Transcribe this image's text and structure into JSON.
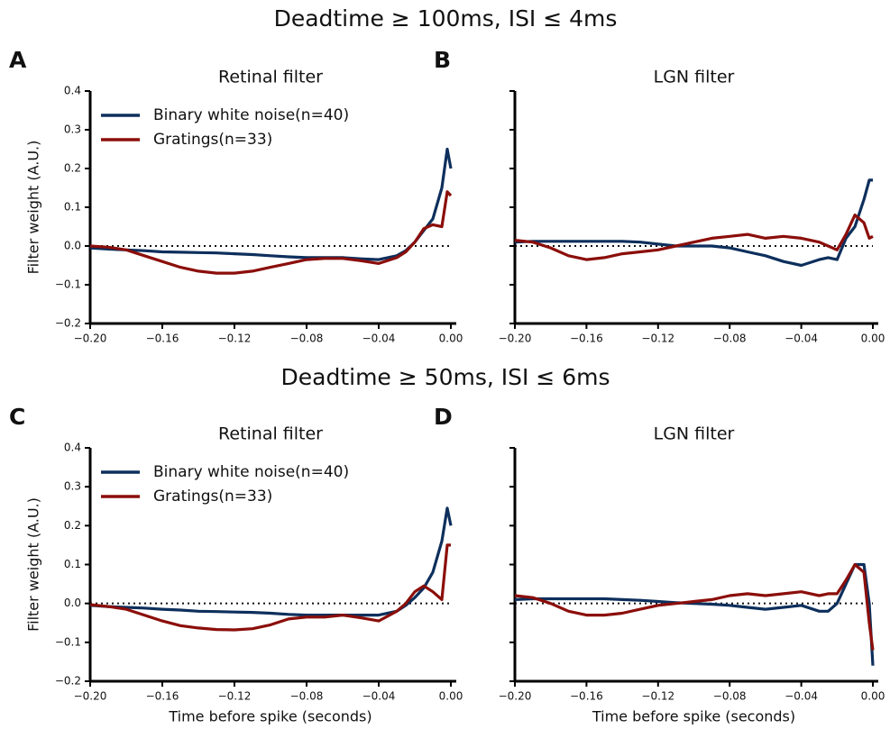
{
  "headings": [
    "Deadtime ≥ 100ms, ISI ≤ 4ms",
    "Deadtime ≥ 50ms, ISI ≤ 6ms"
  ],
  "chart_data": [
    {
      "type": "line",
      "label": "A",
      "title": "Retinal filter",
      "ylabel": "Filter weight (A.U.)",
      "legend": "upper left",
      "x": [
        -0.2,
        -0.19,
        -0.18,
        -0.17,
        -0.16,
        -0.15,
        -0.14,
        -0.13,
        -0.12,
        -0.11,
        -0.1,
        -0.09,
        -0.08,
        -0.07,
        -0.06,
        -0.05,
        -0.04,
        -0.03,
        -0.025,
        -0.02,
        -0.015,
        -0.01,
        -0.005,
        -0.002,
        0.0
      ],
      "series": [
        {
          "name": "Binary white noise(n=40)",
          "color": "#0d2f5c",
          "values": [
            -0.005,
            -0.008,
            -0.01,
            -0.012,
            -0.015,
            -0.016,
            -0.017,
            -0.018,
            -0.02,
            -0.022,
            -0.025,
            -0.028,
            -0.03,
            -0.03,
            -0.03,
            -0.033,
            -0.035,
            -0.025,
            -0.012,
            0.01,
            0.04,
            0.07,
            0.15,
            0.25,
            0.2
          ]
        },
        {
          "name": "Gratings(n=33)",
          "color": "#8b0e0a",
          "values": [
            0.0,
            -0.003,
            -0.01,
            -0.025,
            -0.04,
            -0.055,
            -0.065,
            -0.07,
            -0.07,
            -0.065,
            -0.055,
            -0.045,
            -0.035,
            -0.032,
            -0.032,
            -0.038,
            -0.045,
            -0.03,
            -0.015,
            0.01,
            0.045,
            0.055,
            0.05,
            0.14,
            0.13
          ]
        }
      ],
      "xlim": [
        -0.2,
        0.0
      ],
      "ylim": [
        -0.2,
        0.4
      ],
      "xticks": [
        {
          "value": -0.2,
          "label": "−0.20"
        },
        {
          "value": -0.16,
          "label": "−0.16"
        },
        {
          "value": -0.12,
          "label": "−0.12"
        },
        {
          "value": -0.08,
          "label": "−0.08"
        },
        {
          "value": -0.04,
          "label": "−0.04"
        },
        {
          "value": 0,
          "label": "0.00"
        }
      ],
      "yticks": [
        {
          "value": -0.2,
          "label": "−0.2"
        },
        {
          "value": -0.1,
          "label": "−0.1"
        },
        {
          "value": 0,
          "label": "0.0"
        },
        0.1,
        0.2,
        0.3,
        0.4
      ],
      "show_ytick_labels": true,
      "zero_line": true
    },
    {
      "type": "line",
      "label": "B",
      "title": "LGN filter",
      "x": [
        -0.2,
        -0.19,
        -0.18,
        -0.17,
        -0.16,
        -0.15,
        -0.14,
        -0.13,
        -0.12,
        -0.11,
        -0.1,
        -0.09,
        -0.08,
        -0.07,
        -0.06,
        -0.05,
        -0.04,
        -0.03,
        -0.025,
        -0.02,
        -0.015,
        -0.01,
        -0.005,
        -0.002,
        0.0
      ],
      "series": [
        {
          "color": "#0d2f5c",
          "values": [
            0.01,
            0.012,
            0.012,
            0.012,
            0.012,
            0.012,
            0.012,
            0.01,
            0.005,
            0.0,
            0.0,
            0.0,
            -0.005,
            -0.015,
            -0.025,
            -0.04,
            -0.05,
            -0.035,
            -0.03,
            -0.035,
            0.02,
            0.05,
            0.12,
            0.17,
            0.17
          ]
        },
        {
          "color": "#8b0e0a",
          "values": [
            0.015,
            0.01,
            -0.005,
            -0.025,
            -0.035,
            -0.03,
            -0.02,
            -0.015,
            -0.01,
            0.0,
            0.01,
            0.02,
            0.025,
            0.03,
            0.02,
            0.025,
            0.02,
            0.01,
            0.0,
            -0.01,
            0.03,
            0.08,
            0.06,
            0.02,
            0.025
          ]
        }
      ],
      "xlim": [
        -0.2,
        0.0
      ],
      "ylim": [
        -0.2,
        0.4
      ],
      "xticks": [
        {
          "value": -0.2,
          "label": "−0.20"
        },
        {
          "value": -0.16,
          "label": "−0.16"
        },
        {
          "value": -0.12,
          "label": "−0.12"
        },
        {
          "value": -0.08,
          "label": "−0.08"
        },
        {
          "value": -0.04,
          "label": "−0.04"
        },
        {
          "value": 0,
          "label": "0.00"
        }
      ],
      "yticks": [
        -0.2,
        -0.1,
        0,
        0.1,
        0.2,
        0.3,
        0.4
      ],
      "show_ytick_labels": false,
      "zero_line": true
    },
    {
      "type": "line",
      "label": "C",
      "title": "Retinal filter",
      "ylabel": "Filter weight (A.U.)",
      "xlabel": "Time before spike (seconds)",
      "legend": "upper left",
      "x": [
        -0.2,
        -0.19,
        -0.18,
        -0.17,
        -0.16,
        -0.15,
        -0.14,
        -0.13,
        -0.12,
        -0.11,
        -0.1,
        -0.09,
        -0.08,
        -0.07,
        -0.06,
        -0.05,
        -0.04,
        -0.03,
        -0.025,
        -0.02,
        -0.015,
        -0.01,
        -0.005,
        -0.002,
        0.0
      ],
      "series": [
        {
          "name": "Binary white noise(n=40)",
          "color": "#0d2f5c",
          "values": [
            -0.005,
            -0.008,
            -0.01,
            -0.012,
            -0.015,
            -0.017,
            -0.02,
            -0.021,
            -0.022,
            -0.023,
            -0.025,
            -0.028,
            -0.03,
            -0.03,
            -0.03,
            -0.03,
            -0.03,
            -0.02,
            -0.005,
            0.015,
            0.04,
            0.08,
            0.16,
            0.245,
            0.2
          ]
        },
        {
          "name": "Gratings(n=33)",
          "color": "#8b0e0a",
          "values": [
            -0.003,
            -0.008,
            -0.015,
            -0.03,
            -0.045,
            -0.057,
            -0.063,
            -0.067,
            -0.068,
            -0.065,
            -0.055,
            -0.04,
            -0.035,
            -0.035,
            -0.03,
            -0.037,
            -0.045,
            -0.02,
            0.0,
            0.03,
            0.045,
            0.03,
            0.01,
            0.15,
            0.15
          ]
        }
      ],
      "xlim": [
        -0.2,
        0.0
      ],
      "ylim": [
        -0.2,
        0.4
      ],
      "xticks": [
        {
          "value": -0.2,
          "label": "−0.20"
        },
        {
          "value": -0.16,
          "label": "−0.16"
        },
        {
          "value": -0.12,
          "label": "−0.12"
        },
        {
          "value": -0.08,
          "label": "−0.08"
        },
        {
          "value": -0.04,
          "label": "−0.04"
        },
        {
          "value": 0,
          "label": "0.00"
        }
      ],
      "yticks": [
        {
          "value": -0.2,
          "label": "−0.2"
        },
        {
          "value": -0.1,
          "label": "−0.1"
        },
        {
          "value": 0,
          "label": "0.0"
        },
        0.1,
        0.2,
        0.3,
        0.4
      ],
      "show_ytick_labels": true,
      "zero_line": true
    },
    {
      "type": "line",
      "label": "D",
      "title": "LGN filter",
      "xlabel": "Time before spike (seconds)",
      "x": [
        -0.2,
        -0.19,
        -0.18,
        -0.17,
        -0.16,
        -0.15,
        -0.14,
        -0.13,
        -0.12,
        -0.11,
        -0.1,
        -0.09,
        -0.08,
        -0.07,
        -0.06,
        -0.05,
        -0.04,
        -0.03,
        -0.025,
        -0.02,
        -0.015,
        -0.01,
        -0.005,
        -0.002,
        0.0
      ],
      "series": [
        {
          "color": "#0d2f5c",
          "values": [
            0.01,
            0.012,
            0.012,
            0.012,
            0.012,
            0.012,
            0.01,
            0.008,
            0.005,
            0.002,
            0.0,
            -0.002,
            -0.005,
            -0.01,
            -0.015,
            -0.01,
            -0.005,
            -0.02,
            -0.02,
            0.0,
            0.05,
            0.1,
            0.1,
            0.0,
            -0.16
          ]
        },
        {
          "color": "#8b0e0a",
          "values": [
            0.02,
            0.015,
            0.0,
            -0.02,
            -0.03,
            -0.03,
            -0.025,
            -0.015,
            -0.005,
            0.0,
            0.005,
            0.01,
            0.02,
            0.025,
            0.02,
            0.025,
            0.03,
            0.02,
            0.025,
            0.025,
            0.06,
            0.1,
            0.08,
            -0.05,
            -0.12
          ]
        }
      ],
      "xlim": [
        -0.2,
        0.0
      ],
      "ylim": [
        -0.2,
        0.4
      ],
      "xticks": [
        {
          "value": -0.2,
          "label": "−0.20"
        },
        {
          "value": -0.16,
          "label": "−0.16"
        },
        {
          "value": -0.12,
          "label": "−0.12"
        },
        {
          "value": -0.08,
          "label": "−0.08"
        },
        {
          "value": -0.04,
          "label": "−0.04"
        },
        {
          "value": 0,
          "label": "0.00"
        }
      ],
      "yticks": [
        -0.2,
        -0.1,
        0,
        0.1,
        0.2,
        0.3,
        0.4
      ],
      "show_ytick_labels": false,
      "zero_line": true
    }
  ]
}
